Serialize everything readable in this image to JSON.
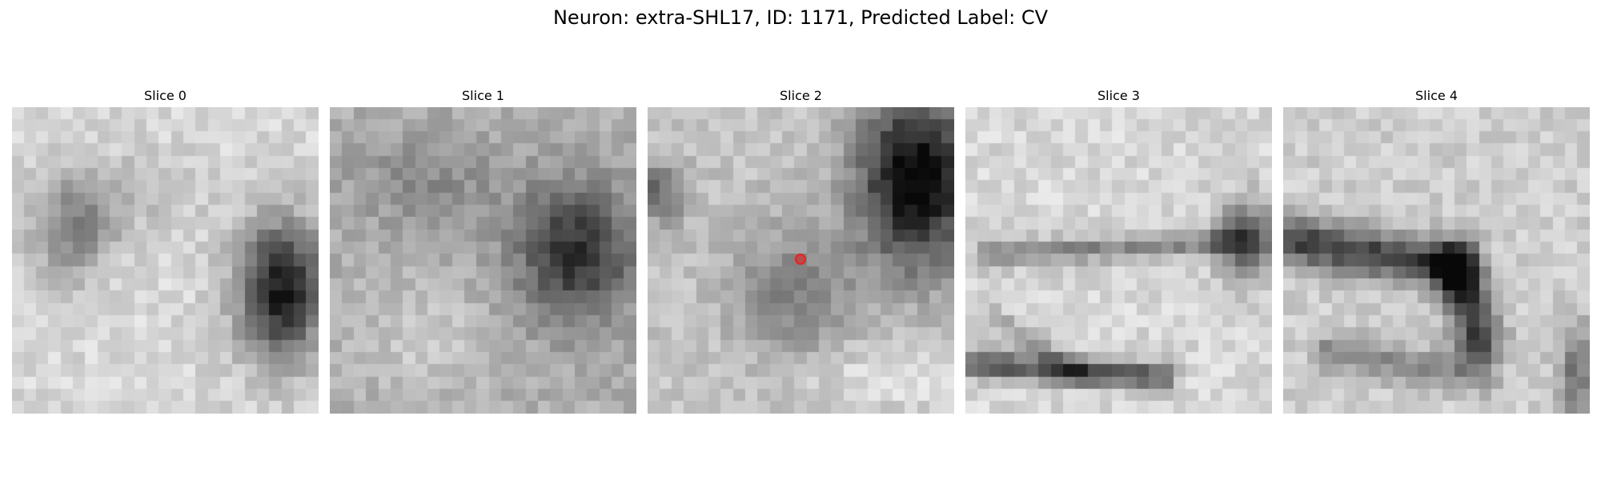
{
  "figure": {
    "title": "Neuron: extra-SHL17, ID: 1171, Predicted Label: CV"
  },
  "panels": [
    {
      "title": "Slice 0",
      "image": "grayscale-em-tile"
    },
    {
      "title": "Slice 1",
      "image": "grayscale-em-tile"
    },
    {
      "title": "Slice 2",
      "image": "grayscale-em-tile",
      "marker": "center-point-marker"
    },
    {
      "title": "Slice 3",
      "image": "grayscale-em-tile"
    },
    {
      "title": "Slice 4",
      "image": "grayscale-em-tile"
    }
  ],
  "colors": {
    "marker": "#e8201e",
    "background": "#ffffff"
  }
}
